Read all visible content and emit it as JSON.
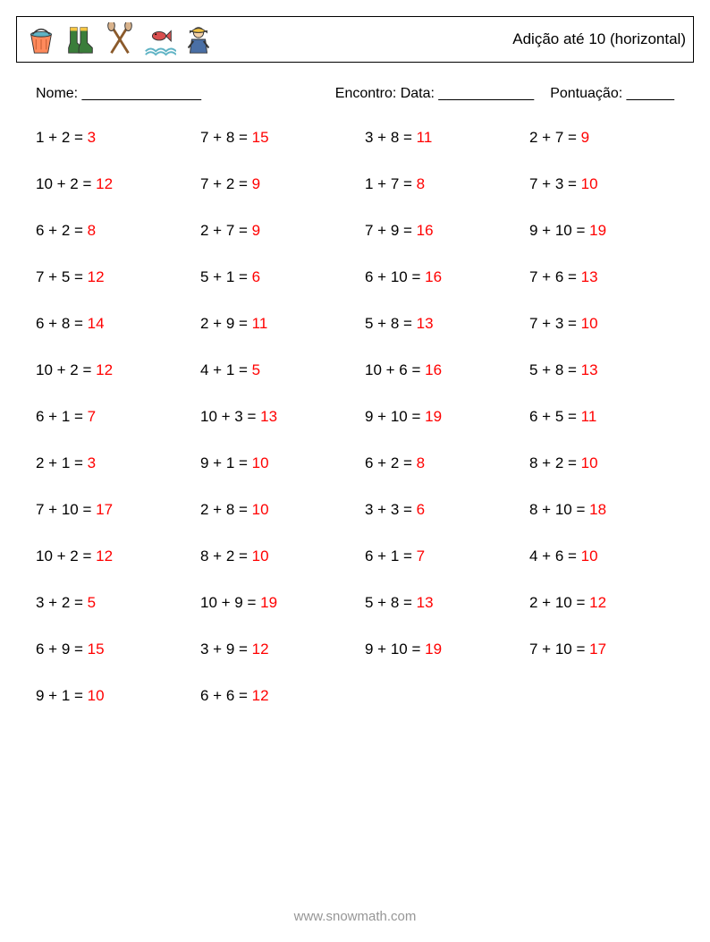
{
  "header": {
    "title": "Adição até 10 (horizontal)",
    "icons": [
      "bucket-icon",
      "boots-icon",
      "oars-icon",
      "fish-splash-icon",
      "fisherman-icon"
    ]
  },
  "meta": {
    "name_label": "Nome: _______________",
    "date_label": "Encontro: Data: ____________",
    "score_label": "Pontuação: ______"
  },
  "style": {
    "answer_color": "#ff0000",
    "text_color": "#000000",
    "footer_color": "#969696",
    "font_size_problem": 17,
    "font_size_meta": 16,
    "font_size_title": 17,
    "background_color": "#ffffff",
    "border_color": "#000000",
    "columns": 4,
    "row_gap": 32,
    "icon_palette": {
      "bucket": {
        "fill": "#ff8a5c",
        "accent": "#5fb3c4"
      },
      "boots": {
        "fill": "#3a7d3a",
        "accent": "#f4c542"
      },
      "oars": {
        "fill": "#8b5a2b",
        "accent": "#d9b38c"
      },
      "fish": {
        "fill": "#d94f4f",
        "accent": "#5fb3c4"
      },
      "fisherman": {
        "fill": "#4a6fa5",
        "accent": "#f4c542"
      }
    }
  },
  "columns_of_problems": [
    [
      {
        "q": "1 + 2 = ",
        "a": "3"
      },
      {
        "q": "10 + 2 = ",
        "a": "12"
      },
      {
        "q": "6 + 2 = ",
        "a": "8"
      },
      {
        "q": "7 + 5 = ",
        "a": "12"
      },
      {
        "q": "6 + 8 = ",
        "a": "14"
      },
      {
        "q": "10 + 2 = ",
        "a": "12"
      },
      {
        "q": "6 + 1 = ",
        "a": "7"
      },
      {
        "q": "2 + 1 = ",
        "a": "3"
      },
      {
        "q": "7 + 10 = ",
        "a": "17"
      },
      {
        "q": "10 + 2 = ",
        "a": "12"
      },
      {
        "q": "3 + 2 = ",
        "a": "5"
      },
      {
        "q": "6 + 9 = ",
        "a": "15"
      },
      {
        "q": "9 + 1 = ",
        "a": "10"
      }
    ],
    [
      {
        "q": "7 + 8 = ",
        "a": "15"
      },
      {
        "q": "7 + 2 = ",
        "a": "9"
      },
      {
        "q": "2 + 7 = ",
        "a": "9"
      },
      {
        "q": "5 + 1 = ",
        "a": "6"
      },
      {
        "q": "2 + 9 = ",
        "a": "11"
      },
      {
        "q": "4 + 1 = ",
        "a": "5"
      },
      {
        "q": "10 + 3 = ",
        "a": "13"
      },
      {
        "q": "9 + 1 = ",
        "a": "10"
      },
      {
        "q": "2 + 8 = ",
        "a": "10"
      },
      {
        "q": "8 + 2 = ",
        "a": "10"
      },
      {
        "q": "10 + 9 = ",
        "a": "19"
      },
      {
        "q": "3 + 9 = ",
        "a": "12"
      },
      {
        "q": "6 + 6 = ",
        "a": "12"
      }
    ],
    [
      {
        "q": "3 + 8 = ",
        "a": "11"
      },
      {
        "q": "1 + 7 = ",
        "a": "8"
      },
      {
        "q": "7 + 9 = ",
        "a": "16"
      },
      {
        "q": "6 + 10 = ",
        "a": "16"
      },
      {
        "q": "5 + 8 = ",
        "a": "13"
      },
      {
        "q": "10 + 6 = ",
        "a": "16"
      },
      {
        "q": "9 + 10 = ",
        "a": "19"
      },
      {
        "q": "6 + 2 = ",
        "a": "8"
      },
      {
        "q": "3 + 3 = ",
        "a": "6"
      },
      {
        "q": "6 + 1 = ",
        "a": "7"
      },
      {
        "q": "5 + 8 = ",
        "a": "13"
      },
      {
        "q": "9 + 10 = ",
        "a": "19"
      }
    ],
    [
      {
        "q": "2 + 7 = ",
        "a": "9"
      },
      {
        "q": "7 + 3 = ",
        "a": "10"
      },
      {
        "q": "9 + 10 = ",
        "a": "19"
      },
      {
        "q": "7 + 6 = ",
        "a": "13"
      },
      {
        "q": "7 + 3 = ",
        "a": "10"
      },
      {
        "q": "5 + 8 = ",
        "a": "13"
      },
      {
        "q": "6 + 5 = ",
        "a": "11"
      },
      {
        "q": "8 + 2 = ",
        "a": "10"
      },
      {
        "q": "8 + 10 = ",
        "a": "18"
      },
      {
        "q": "4 + 6 = ",
        "a": "10"
      },
      {
        "q": "2 + 10 = ",
        "a": "12"
      },
      {
        "q": "7 + 10 = ",
        "a": "17"
      }
    ]
  ],
  "footer": {
    "text": "www.snowmath.com"
  }
}
